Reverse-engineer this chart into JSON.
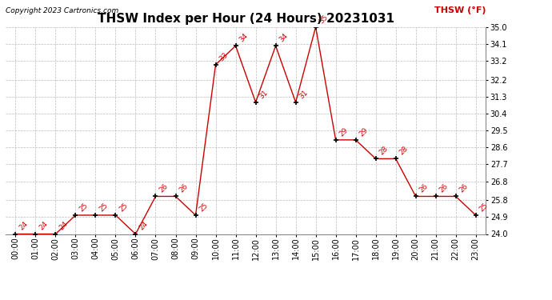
{
  "title": "THSW Index per Hour (24 Hours) 20231031",
  "copyright_text": "Copyright 2023 Cartronics.com",
  "legend_label": "THSW (°F)",
  "hours": [
    "00:00",
    "01:00",
    "02:00",
    "03:00",
    "04:00",
    "05:00",
    "06:00",
    "07:00",
    "08:00",
    "09:00",
    "10:00",
    "11:00",
    "12:00",
    "13:00",
    "14:00",
    "15:00",
    "16:00",
    "17:00",
    "18:00",
    "19:00",
    "20:00",
    "21:00",
    "22:00",
    "23:00"
  ],
  "values": [
    24,
    24,
    24,
    25,
    25,
    25,
    24,
    26,
    26,
    25,
    33,
    34,
    31,
    34,
    31,
    35,
    29,
    29,
    28,
    28,
    26,
    26,
    26,
    25
  ],
  "line_color": "#cc0000",
  "marker_color": "black",
  "ylim_min": 24.0,
  "ylim_max": 35.0,
  "yticks": [
    24.0,
    24.9,
    25.8,
    26.8,
    27.7,
    28.6,
    29.5,
    30.4,
    31.3,
    32.2,
    33.2,
    34.1,
    35.0
  ],
  "background_color": "#ffffff",
  "grid_color": "#bbbbbb",
  "title_fontsize": 11,
  "tick_fontsize": 7,
  "legend_color": "#cc0000",
  "anno_fontsize": 6.5,
  "fig_width": 6.9,
  "fig_height": 3.75,
  "dpi": 100
}
